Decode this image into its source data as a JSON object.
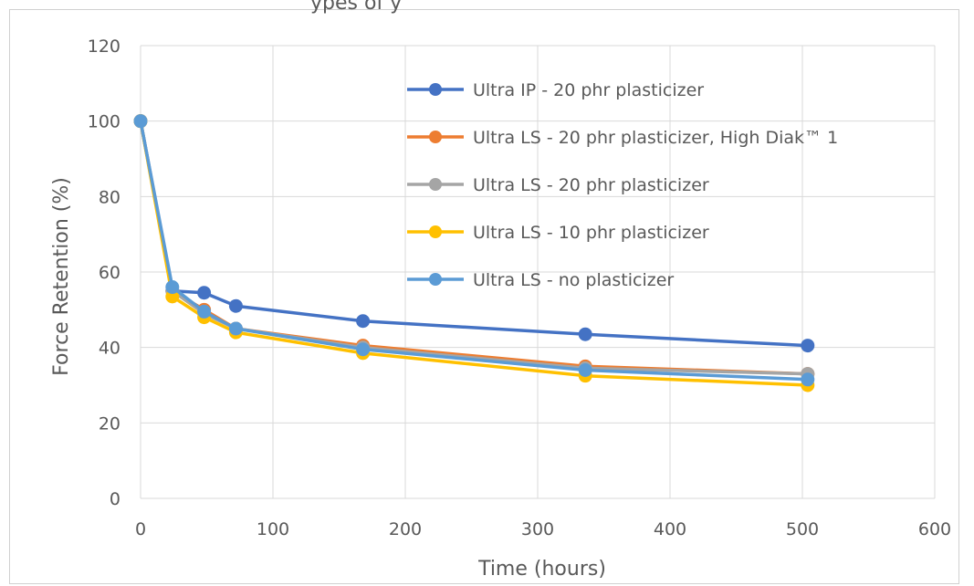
{
  "title_fragment": "ypes of                y",
  "chart_data": {
    "type": "line",
    "title": "",
    "xlabel": "Time (hours)",
    "ylabel": "Force Retention (%)",
    "xlim": [
      0,
      600
    ],
    "ylim": [
      0,
      120
    ],
    "xticks": [
      0,
      100,
      200,
      300,
      400,
      500,
      600
    ],
    "yticks": [
      0,
      20,
      40,
      60,
      80,
      100,
      120
    ],
    "grid": true,
    "legend_position": "upper-right, inside plot",
    "series": [
      {
        "name": "Ultra IP - 20 phr plasticizer",
        "color": "#4472C4",
        "x": [
          0,
          24,
          48,
          72,
          168,
          336,
          504
        ],
        "y": [
          100,
          55,
          54.5,
          51,
          47,
          43.5,
          40.5
        ]
      },
      {
        "name": "Ultra LS - 20 phr plasticizer, High Diak™ 1",
        "color": "#ED7D31",
        "x": [
          0,
          24,
          48,
          72,
          168,
          336,
          504
        ],
        "y": [
          100,
          55,
          50,
          45,
          40.5,
          35,
          33
        ]
      },
      {
        "name": "Ultra LS - 20 phr plasticizer",
        "color": "#A5A5A5",
        "x": [
          0,
          24,
          48,
          72,
          168,
          336,
          504
        ],
        "y": [
          100,
          55,
          49,
          45,
          40,
          34.5,
          33
        ]
      },
      {
        "name": "Ultra LS - 10 phr plasticizer",
        "color": "#FFC000",
        "x": [
          0,
          24,
          48,
          72,
          168,
          336,
          504
        ],
        "y": [
          100,
          53.5,
          48,
          44,
          38.5,
          32.5,
          30
        ]
      },
      {
        "name": "Ultra LS - no plasticizer",
        "color": "#5B9BD5",
        "x": [
          0,
          24,
          48,
          72,
          168,
          336,
          504
        ],
        "y": [
          100,
          56,
          49.5,
          45,
          39.5,
          34,
          31.5
        ]
      }
    ]
  }
}
